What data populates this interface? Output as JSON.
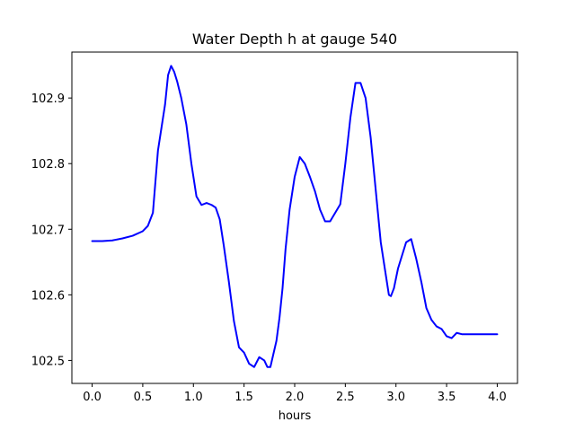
{
  "chart_data": {
    "type": "line",
    "title": "Water Depth h at gauge 540",
    "xlabel": "hours",
    "ylabel": "",
    "xlim": [
      -0.2,
      4.2
    ],
    "ylim": [
      102.465,
      102.97
    ],
    "xticks": [
      0.0,
      0.5,
      1.0,
      1.5,
      2.0,
      2.5,
      3.0,
      3.5,
      4.0
    ],
    "xtick_labels": [
      "0.0",
      "0.5",
      "1.0",
      "1.5",
      "2.0",
      "2.5",
      "3.0",
      "3.5",
      "4.0"
    ],
    "yticks": [
      102.5,
      102.6,
      102.7,
      102.8,
      102.9
    ],
    "ytick_labels": [
      "102.5",
      "102.6",
      "102.7",
      "102.8",
      "102.9"
    ],
    "grid": false,
    "line_color": "#0000ff",
    "series": [
      {
        "x": [
          0.0,
          0.1,
          0.2,
          0.3,
          0.4,
          0.5,
          0.55,
          0.6,
          0.65,
          0.68,
          0.72,
          0.75,
          0.78,
          0.81,
          0.84,
          0.88,
          0.93,
          0.98,
          1.03,
          1.08,
          1.13,
          1.18,
          1.22,
          1.26,
          1.3,
          1.35,
          1.4,
          1.45,
          1.5,
          1.55,
          1.6,
          1.65,
          1.7,
          1.73,
          1.76,
          1.79,
          1.82,
          1.85,
          1.88,
          1.91,
          1.95,
          2.0,
          2.05,
          2.1,
          2.15,
          2.2,
          2.25,
          2.3,
          2.35,
          2.4,
          2.45,
          2.5,
          2.55,
          2.6,
          2.65,
          2.7,
          2.75,
          2.8,
          2.85,
          2.9,
          2.93,
          2.95,
          2.98,
          3.02,
          3.06,
          3.1,
          3.15,
          3.2,
          3.25,
          3.3,
          3.35,
          3.4,
          3.45,
          3.5,
          3.55,
          3.6,
          3.65,
          3.7,
          3.75,
          3.8,
          3.83,
          3.87,
          3.9,
          3.93,
          3.96,
          4.0
        ],
        "y": [
          102.682,
          102.682,
          102.683,
          102.686,
          102.69,
          102.697,
          102.705,
          102.725,
          102.82,
          102.85,
          102.89,
          102.935,
          102.949,
          102.94,
          102.925,
          102.9,
          102.86,
          102.8,
          102.75,
          102.737,
          102.74,
          102.737,
          102.733,
          102.715,
          102.675,
          102.62,
          102.56,
          102.52,
          102.512,
          102.495,
          102.49,
          102.505,
          102.5,
          102.49,
          102.49,
          102.51,
          102.53,
          102.565,
          102.61,
          102.67,
          102.73,
          102.78,
          102.81,
          102.8,
          102.78,
          102.758,
          102.73,
          102.712,
          102.712,
          102.725,
          102.738,
          102.8,
          102.87,
          102.923,
          102.923,
          102.9,
          102.84,
          102.76,
          102.68,
          102.63,
          102.6,
          102.598,
          102.61,
          102.64,
          102.66,
          102.68,
          102.685,
          102.655,
          102.62,
          102.58,
          102.562,
          102.552,
          102.548,
          102.537,
          102.534,
          102.542,
          102.54,
          102.54,
          102.54,
          102.54,
          102.54,
          102.54,
          102.54,
          102.54,
          102.54,
          102.54
        ]
      }
    ]
  }
}
